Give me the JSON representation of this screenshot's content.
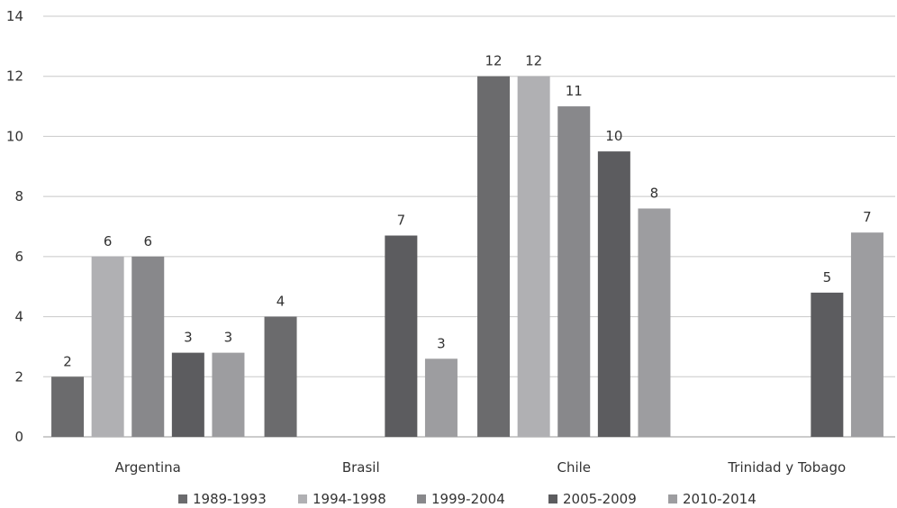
{
  "chart_data": {
    "type": "bar",
    "categories": [
      "Argentina",
      "Brasil",
      "Chile",
      "Trinidad y Tobago"
    ],
    "series": [
      {
        "name": "1989-1993",
        "color": "#6b6b6d",
        "values": [
          2,
          4,
          12,
          null
        ],
        "labels": [
          "2",
          "4",
          "12",
          ""
        ]
      },
      {
        "name": "1994-1998",
        "color": "#b0b0b3",
        "values": [
          6,
          null,
          12,
          null
        ],
        "labels": [
          "6",
          "",
          "12",
          ""
        ]
      },
      {
        "name": "1999-2004",
        "color": "#88888b",
        "values": [
          6,
          null,
          11,
          null
        ],
        "labels": [
          "6",
          "",
          "11",
          ""
        ]
      },
      {
        "name": "2005-2009",
        "color": "#5c5c5f",
        "values": [
          2.8,
          6.7,
          9.5,
          4.8
        ],
        "labels": [
          "3",
          "7",
          "10",
          "5"
        ]
      },
      {
        "name": "2010-2014",
        "color": "#9d9da0",
        "values": [
          2.8,
          2.6,
          7.6,
          6.8
        ],
        "labels": [
          "3",
          "3",
          "8",
          "7"
        ]
      }
    ],
    "yticks": [
      "0",
      "2",
      "4",
      "6",
      "8",
      "10",
      "12",
      "14"
    ],
    "ylim": [
      0,
      14
    ],
    "grid": true,
    "legend_position": "bottom",
    "title": "",
    "xlabel": "",
    "ylabel": ""
  }
}
